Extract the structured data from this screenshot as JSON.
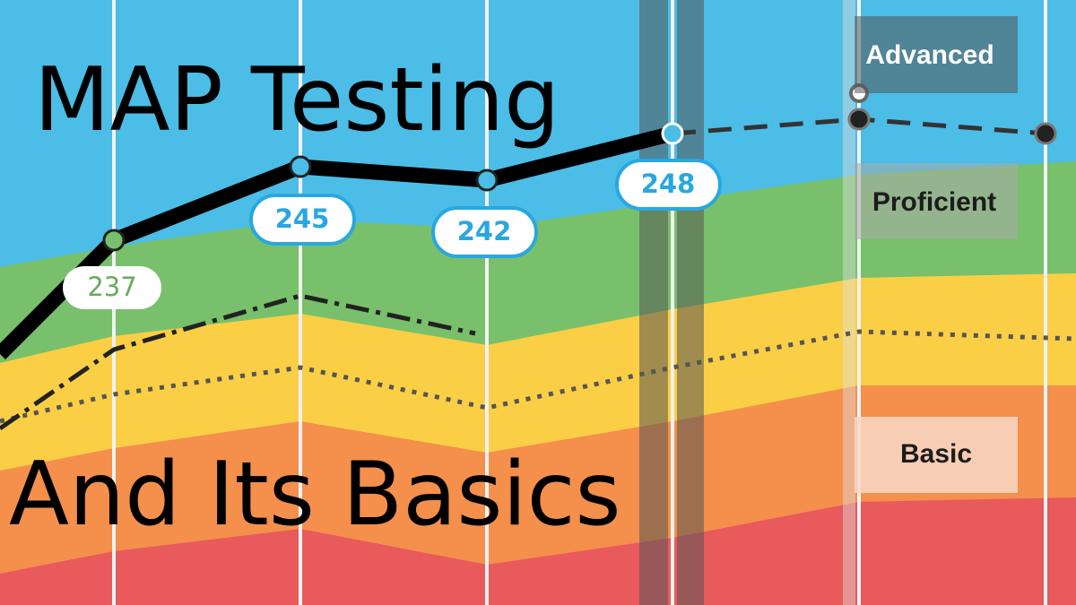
{
  "title": {
    "line1": "MAP Testing",
    "line2": "And Its Basics"
  },
  "scores": [
    237,
    245,
    242,
    248
  ],
  "levels": [
    "Advanced",
    "Proficient",
    "Basic"
  ]
}
